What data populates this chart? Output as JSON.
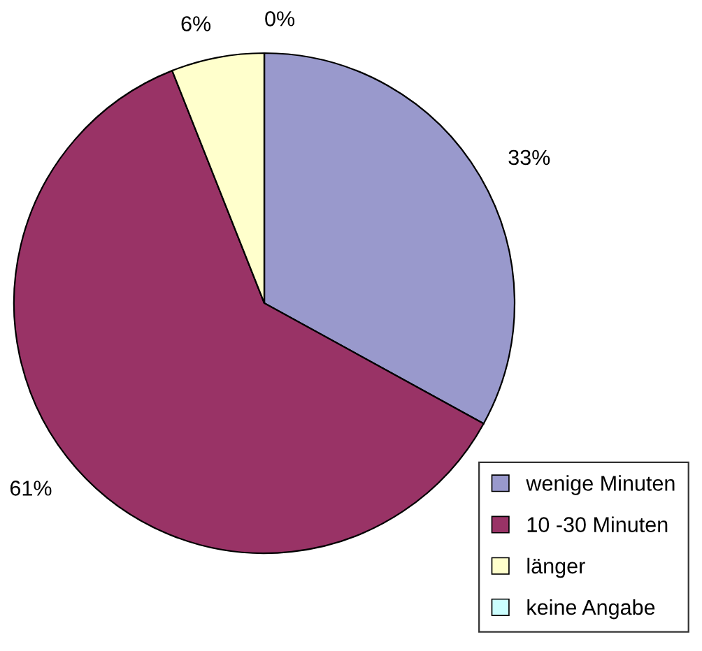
{
  "chart_data": {
    "type": "pie",
    "categories": [
      "wenige Minuten",
      "10 -30 Minuten",
      "länger",
      "keine Angabe"
    ],
    "values": [
      33,
      61,
      6,
      0
    ],
    "value_labels": [
      "33%",
      "61%",
      "6%",
      "0%"
    ],
    "colors": [
      "#9999cc",
      "#993366",
      "#ffffcc",
      "#ccffff"
    ],
    "legend": "bottom right"
  }
}
